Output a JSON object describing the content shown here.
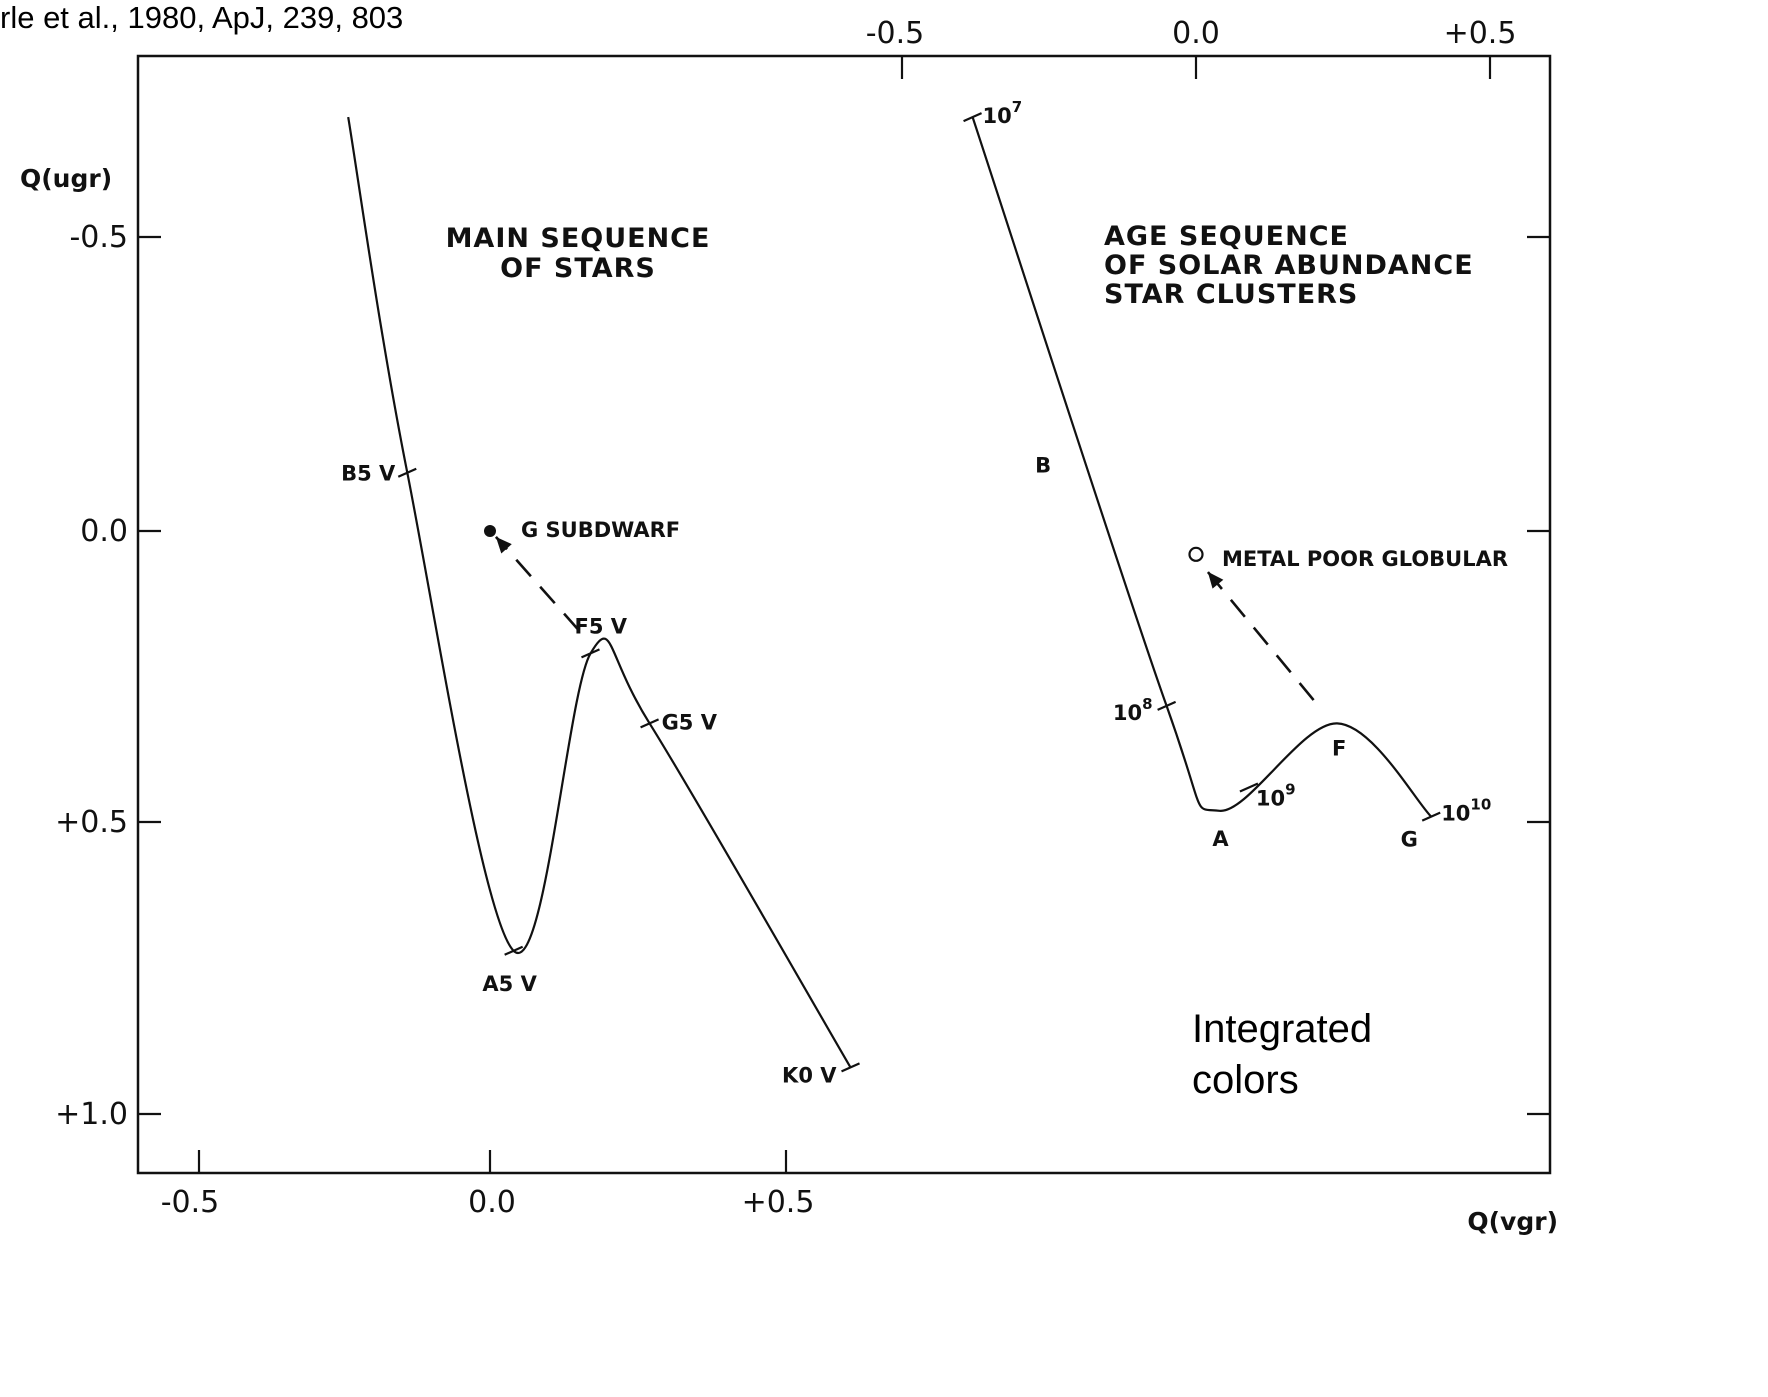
{
  "citation": "rle et al., 1980, ApJ, 239, 803",
  "chart_data": {
    "type": "line",
    "ylabel": "Q(ugr)",
    "xlabel": "Q(vgr)",
    "bottom_ticks": [
      "-0.5",
      "0.0",
      "+0.5"
    ],
    "top_ticks": [
      "-0.5",
      "0.0",
      "+0.5"
    ],
    "left_ticks": [
      "-0.5",
      "0.0",
      "+0.5",
      "+1.0"
    ],
    "panels": [
      {
        "annotation_lines": [
          "MAIN SEQUENCE",
          "OF STARS"
        ],
        "xlim": [
          -0.5,
          0.6
        ],
        "series": [
          {
            "style": "solid",
            "points": [
              {
                "x": -0.24,
                "y": -0.71
              },
              {
                "x": -0.14,
                "y": -0.1
              },
              {
                "x": 0.04,
                "y": 0.72
              },
              {
                "x": 0.17,
                "y": 0.21
              },
              {
                "x": 0.27,
                "y": 0.33
              },
              {
                "x": 0.61,
                "y": 0.92
              }
            ]
          },
          {
            "style": "dashed",
            "points": [
              {
                "x": 0.15,
                "y": 0.17
              },
              {
                "x": 0.01,
                "y": 0.01
              }
            ]
          }
        ],
        "markers": [
          {
            "label": "B5 V",
            "x": -0.14,
            "y": -0.1
          },
          {
            "label": "A5 V",
            "x": 0.04,
            "y": 0.72
          },
          {
            "label": "F5 V",
            "x": 0.17,
            "y": 0.21
          },
          {
            "label": "G5 V",
            "x": 0.27,
            "y": 0.33
          },
          {
            "label": "K0 V",
            "x": 0.61,
            "y": 0.92
          }
        ],
        "point": {
          "label": "G SUBDWARF",
          "x": 0.0,
          "y": 0.0,
          "fill": "filled"
        }
      },
      {
        "annotation_lines": [
          "AGE SEQUENCE",
          "OF SOLAR ABUNDANCE",
          "STAR CLUSTERS"
        ],
        "xlim": [
          -0.5,
          0.5
        ],
        "series": [
          {
            "style": "solid",
            "points": [
              {
                "x": -0.38,
                "y": -0.71
              },
              {
                "x": -0.05,
                "y": 0.3
              },
              {
                "x": 0.04,
                "y": 0.48
              },
              {
                "x": 0.24,
                "y": 0.33
              },
              {
                "x": 0.4,
                "y": 0.49
              }
            ]
          },
          {
            "style": "dashed",
            "points": [
              {
                "x": 0.2,
                "y": 0.29
              },
              {
                "x": 0.02,
                "y": 0.07
              }
            ]
          }
        ],
        "markers": [
          {
            "label": "10",
            "exp": "7",
            "x": -0.38,
            "y": -0.71
          },
          {
            "label": "B",
            "x": -0.26,
            "y": -0.1
          },
          {
            "label": "10",
            "exp": "8",
            "x": -0.05,
            "y": 0.3
          },
          {
            "label": "A",
            "x": 0.04,
            "y": 0.48
          },
          {
            "label": "10",
            "exp": "9",
            "x": 0.09,
            "y": 0.44
          },
          {
            "label": "F",
            "x": 0.24,
            "y": 0.33
          },
          {
            "label": "G",
            "x": 0.4,
            "y": 0.49
          },
          {
            "label": "10",
            "exp": "10",
            "x": 0.4,
            "y": 0.49
          }
        ],
        "point": {
          "label": "METAL POOR GLOBULAR",
          "x": 0.0,
          "y": 0.04,
          "fill": "open"
        }
      }
    ]
  },
  "note_lines": [
    "Integrated",
    "colors"
  ]
}
